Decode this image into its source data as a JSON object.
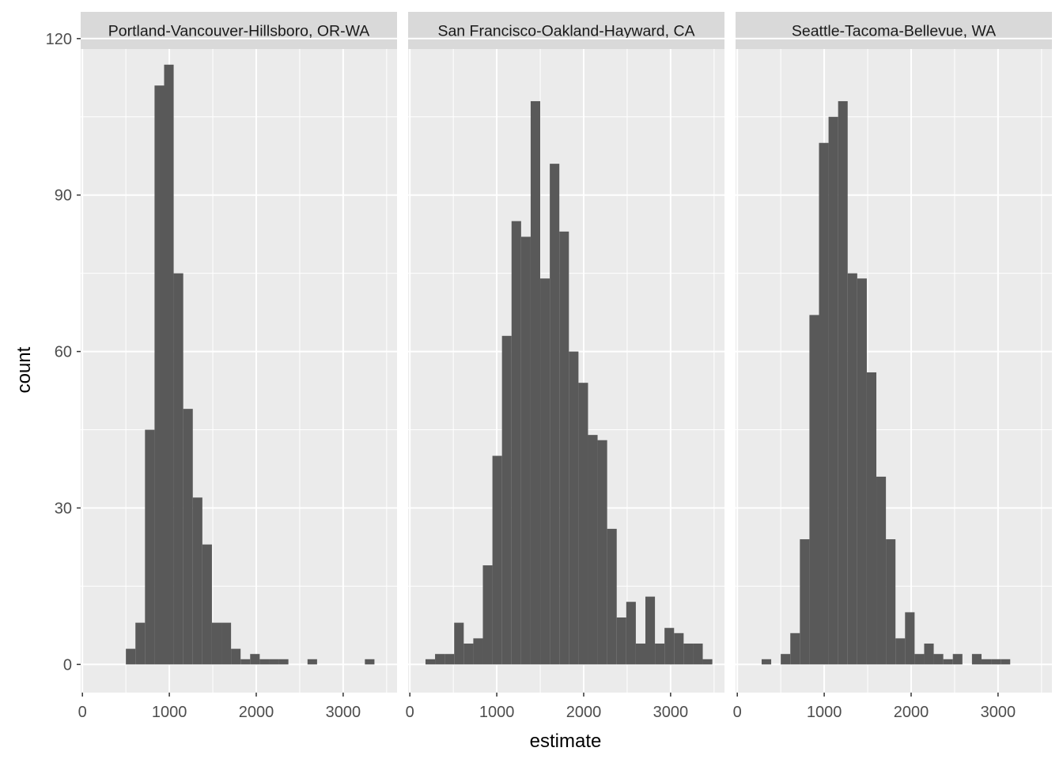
{
  "chart_data": {
    "type": "bar",
    "subtype": "faceted-histogram",
    "xlabel": "estimate",
    "ylabel": "count",
    "xlim": [
      -20,
      3620
    ],
    "ylim": [
      -5.4,
      118
    ],
    "x_ticks": [
      0,
      1000,
      2000,
      3000
    ],
    "x_tick_labels": [
      "0",
      "1000",
      "2000",
      "3000"
    ],
    "y_ticks": [
      0,
      30,
      60,
      90,
      120
    ],
    "y_tick_labels": [
      "0",
      "30",
      "60",
      "90",
      "120"
    ],
    "grid": true,
    "bin_width": 110,
    "colors": {
      "bar": "#595959",
      "panel_background": "#ebebeb",
      "grid": "#ffffff",
      "strip_background": "#d9d9d9"
    },
    "facets": [
      {
        "name": "Portland-Vancouver-Hillsboro, OR-WA",
        "bins": [
          {
            "x0": 500,
            "x1": 610,
            "count": 3
          },
          {
            "x0": 610,
            "x1": 720,
            "count": 8
          },
          {
            "x0": 720,
            "x1": 830,
            "count": 45
          },
          {
            "x0": 830,
            "x1": 940,
            "count": 111
          },
          {
            "x0": 940,
            "x1": 1050,
            "count": 115
          },
          {
            "x0": 1050,
            "x1": 1160,
            "count": 75
          },
          {
            "x0": 1160,
            "x1": 1270,
            "count": 49
          },
          {
            "x0": 1270,
            "x1": 1380,
            "count": 32
          },
          {
            "x0": 1380,
            "x1": 1490,
            "count": 23
          },
          {
            "x0": 1490,
            "x1": 1600,
            "count": 8
          },
          {
            "x0": 1600,
            "x1": 1710,
            "count": 8
          },
          {
            "x0": 1710,
            "x1": 1820,
            "count": 3
          },
          {
            "x0": 1820,
            "x1": 1930,
            "count": 1
          },
          {
            "x0": 1930,
            "x1": 2040,
            "count": 2
          },
          {
            "x0": 2040,
            "x1": 2150,
            "count": 1
          },
          {
            "x0": 2150,
            "x1": 2260,
            "count": 1
          },
          {
            "x0": 2260,
            "x1": 2370,
            "count": 1
          },
          {
            "x0": 2590,
            "x1": 2700,
            "count": 1
          },
          {
            "x0": 3250,
            "x1": 3360,
            "count": 1
          }
        ]
      },
      {
        "name": "San Francisco-Oakland-Hayward, CA",
        "bins": [
          {
            "x0": 180,
            "x1": 290,
            "count": 1
          },
          {
            "x0": 290,
            "x1": 400,
            "count": 2
          },
          {
            "x0": 400,
            "x1": 510,
            "count": 2
          },
          {
            "x0": 510,
            "x1": 620,
            "count": 8
          },
          {
            "x0": 620,
            "x1": 730,
            "count": 4
          },
          {
            "x0": 730,
            "x1": 840,
            "count": 5
          },
          {
            "x0": 840,
            "x1": 950,
            "count": 19
          },
          {
            "x0": 950,
            "x1": 1060,
            "count": 40
          },
          {
            "x0": 1060,
            "x1": 1170,
            "count": 63
          },
          {
            "x0": 1170,
            "x1": 1280,
            "count": 85
          },
          {
            "x0": 1280,
            "x1": 1390,
            "count": 82
          },
          {
            "x0": 1390,
            "x1": 1500,
            "count": 108
          },
          {
            "x0": 1500,
            "x1": 1610,
            "count": 74
          },
          {
            "x0": 1610,
            "x1": 1720,
            "count": 96
          },
          {
            "x0": 1720,
            "x1": 1830,
            "count": 83
          },
          {
            "x0": 1830,
            "x1": 1940,
            "count": 60
          },
          {
            "x0": 1940,
            "x1": 2050,
            "count": 54
          },
          {
            "x0": 2050,
            "x1": 2160,
            "count": 44
          },
          {
            "x0": 2160,
            "x1": 2270,
            "count": 43
          },
          {
            "x0": 2270,
            "x1": 2380,
            "count": 26
          },
          {
            "x0": 2380,
            "x1": 2490,
            "count": 9
          },
          {
            "x0": 2490,
            "x1": 2600,
            "count": 12
          },
          {
            "x0": 2600,
            "x1": 2710,
            "count": 4
          },
          {
            "x0": 2710,
            "x1": 2820,
            "count": 13
          },
          {
            "x0": 2820,
            "x1": 2930,
            "count": 4
          },
          {
            "x0": 2930,
            "x1": 3040,
            "count": 7
          },
          {
            "x0": 3040,
            "x1": 3150,
            "count": 6
          },
          {
            "x0": 3150,
            "x1": 3260,
            "count": 4
          },
          {
            "x0": 3260,
            "x1": 3370,
            "count": 4
          },
          {
            "x0": 3370,
            "x1": 3480,
            "count": 1
          }
        ]
      },
      {
        "name": "Seattle-Tacoma-Bellevue, WA",
        "bins": [
          {
            "x0": 280,
            "x1": 390,
            "count": 1
          },
          {
            "x0": 500,
            "x1": 610,
            "count": 2
          },
          {
            "x0": 610,
            "x1": 720,
            "count": 6
          },
          {
            "x0": 720,
            "x1": 830,
            "count": 24
          },
          {
            "x0": 830,
            "x1": 940,
            "count": 67
          },
          {
            "x0": 940,
            "x1": 1050,
            "count": 100
          },
          {
            "x0": 1050,
            "x1": 1160,
            "count": 105
          },
          {
            "x0": 1160,
            "x1": 1270,
            "count": 108
          },
          {
            "x0": 1270,
            "x1": 1380,
            "count": 75
          },
          {
            "x0": 1380,
            "x1": 1490,
            "count": 74
          },
          {
            "x0": 1490,
            "x1": 1600,
            "count": 56
          },
          {
            "x0": 1600,
            "x1": 1710,
            "count": 36
          },
          {
            "x0": 1710,
            "x1": 1820,
            "count": 24
          },
          {
            "x0": 1820,
            "x1": 1930,
            "count": 5
          },
          {
            "x0": 1930,
            "x1": 2040,
            "count": 10
          },
          {
            "x0": 2040,
            "x1": 2150,
            "count": 2
          },
          {
            "x0": 2150,
            "x1": 2260,
            "count": 4
          },
          {
            "x0": 2260,
            "x1": 2370,
            "count": 2
          },
          {
            "x0": 2370,
            "x1": 2480,
            "count": 1
          },
          {
            "x0": 2480,
            "x1": 2590,
            "count": 2
          },
          {
            "x0": 2700,
            "x1": 2810,
            "count": 2
          },
          {
            "x0": 2810,
            "x1": 2920,
            "count": 1
          },
          {
            "x0": 2920,
            "x1": 3030,
            "count": 1
          },
          {
            "x0": 3030,
            "x1": 3140,
            "count": 1
          }
        ]
      }
    ]
  }
}
